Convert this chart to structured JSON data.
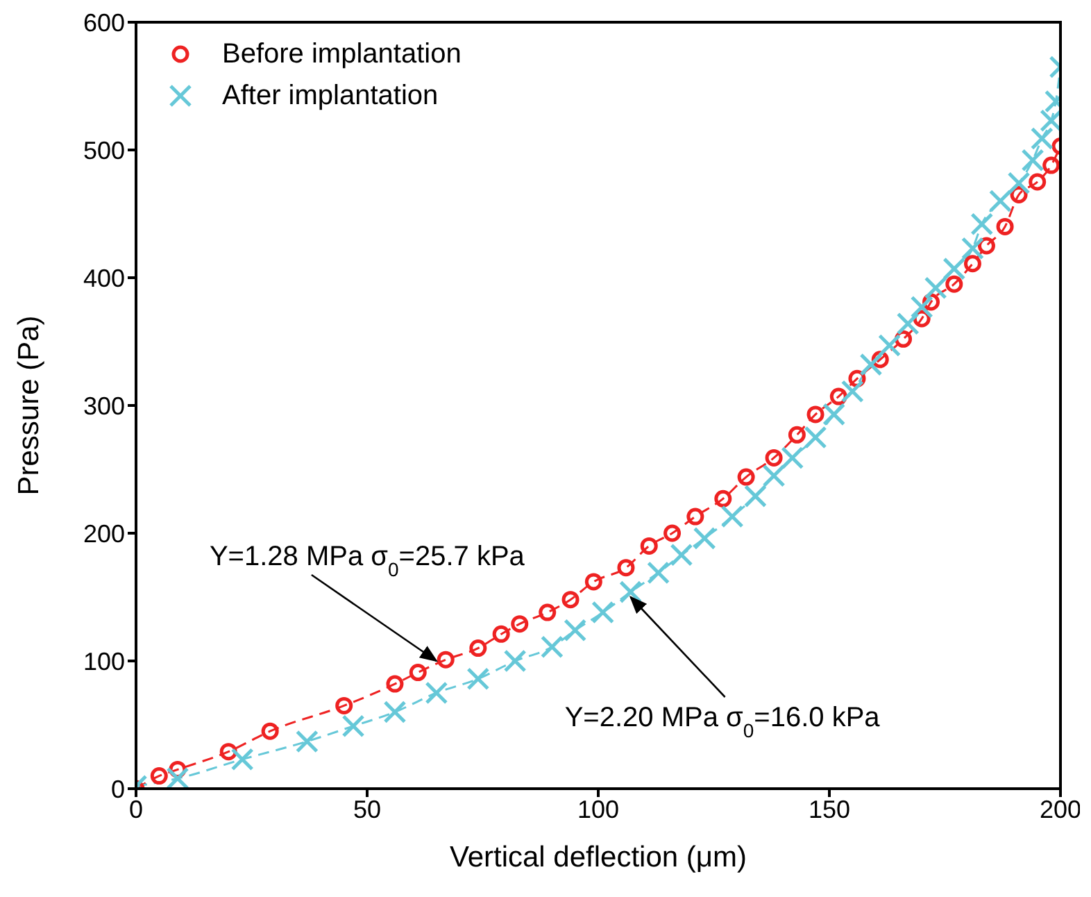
{
  "chart_data": {
    "type": "line",
    "xlabel": "Vertical deflection (μm)",
    "ylabel": "Pressure (Pa)",
    "xlim": [
      0,
      200
    ],
    "xticks": [
      0,
      50,
      100,
      150,
      200
    ],
    "ylim": [
      0,
      600
    ],
    "yticks": [
      0,
      100,
      200,
      300,
      400,
      500,
      600
    ],
    "grid": false,
    "legend": "top left",
    "line_style": "dashed",
    "series": [
      {
        "name": "Before implantation",
        "color": "#ee2222",
        "marker": "circle",
        "x": [
          0,
          5,
          9,
          20,
          29,
          45,
          56,
          61,
          67,
          74,
          79,
          83,
          89,
          94,
          99,
          106,
          111,
          116,
          121,
          127,
          132,
          138,
          143,
          147,
          152,
          156,
          161,
          166,
          170,
          172,
          177,
          181,
          184,
          188,
          191,
          195,
          198,
          200
        ],
        "values": [
          0,
          10,
          15,
          29,
          45,
          65,
          82,
          91,
          101,
          110,
          121,
          129,
          138,
          148,
          162,
          173,
          190,
          200,
          213,
          227,
          244,
          259,
          277,
          293,
          307,
          321,
          336,
          352,
          368,
          381,
          395,
          411,
          425,
          440,
          465,
          475,
          488,
          503
        ]
      },
      {
        "name": "After implantation",
        "color": "#66c8d8",
        "marker": "cross",
        "x": [
          0,
          9,
          23,
          37,
          47,
          56,
          65,
          74,
          82,
          90,
          95,
          101,
          107,
          113,
          118,
          123,
          129,
          134,
          138,
          142,
          147,
          151,
          155,
          159,
          163,
          167,
          170,
          173,
          177,
          181,
          183,
          187,
          191,
          194,
          196,
          198,
          199,
          200
        ],
        "values": [
          2,
          8,
          23,
          37,
          49,
          60,
          75,
          86,
          100,
          111,
          124,
          138,
          154,
          169,
          183,
          196,
          213,
          229,
          245,
          259,
          275,
          293,
          311,
          332,
          347,
          364,
          377,
          392,
          407,
          423,
          442,
          460,
          474,
          492,
          509,
          523,
          538,
          565
        ]
      }
    ],
    "annotations": [
      {
        "text": "Y=1.28 MPa σ$_{0}$=25.7 kPa",
        "x": 65,
        "y": 100
      },
      {
        "text": "Y=2.20 MPa σ$_{0}$=16.0 kPa",
        "x": 107,
        "y": 150
      }
    ]
  }
}
